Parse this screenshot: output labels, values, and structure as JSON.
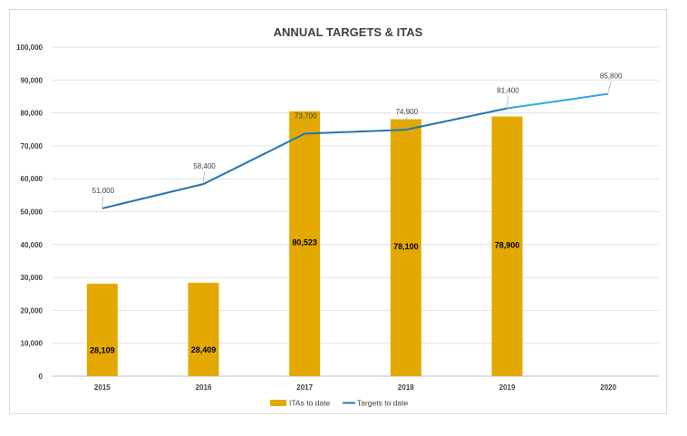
{
  "chart_data": {
    "type": "bar",
    "title": "ANNUAL TARGETS & ITAS",
    "categories": [
      "2015",
      "2016",
      "2017",
      "2018",
      "2019",
      "2020"
    ],
    "ylim": [
      0,
      100000
    ],
    "yticks": [
      0,
      10000,
      20000,
      30000,
      40000,
      50000,
      60000,
      70000,
      80000,
      90000,
      100000
    ],
    "ytick_labels": [
      "0",
      "10,000",
      "20,000",
      "30,000",
      "40,000",
      "50,000",
      "60,000",
      "70,000",
      "80,000",
      "90,000",
      "100,000"
    ],
    "grid": true,
    "legend_position": "bottom",
    "series": [
      {
        "name": "ITAs to date",
        "type": "bar",
        "color": "#e3a900",
        "values": [
          28109,
          28409,
          80523,
          78100,
          78900,
          null
        ],
        "labels": [
          "28,109",
          "28,409",
          "80,523",
          "78,100",
          "78,900",
          ""
        ]
      },
      {
        "name": "Targets to date",
        "type": "line",
        "color": "#1f77b4",
        "projection_color": "#2ea8e0",
        "values": [
          51000,
          58400,
          73700,
          74900,
          81400,
          85800
        ],
        "labels": [
          "51,000",
          "58,400",
          "73,700",
          "74,900",
          "81,400",
          "85,800"
        ]
      }
    ]
  }
}
